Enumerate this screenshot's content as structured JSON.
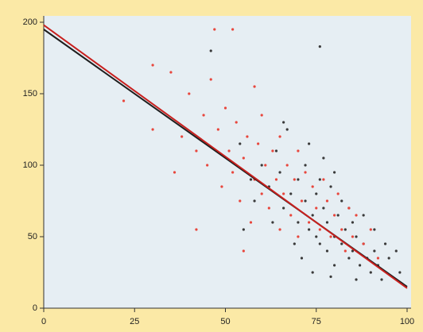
{
  "chart_data": {
    "type": "scatter",
    "xlim": [
      0,
      100
    ],
    "ylim": [
      0,
      200
    ],
    "xticks": [
      0,
      25,
      50,
      75,
      100
    ],
    "yticks": [
      0,
      50,
      100,
      150,
      200
    ],
    "series": [
      {
        "color": "#3a3a3a",
        "x": [
          60,
          62,
          65,
          66,
          68,
          70,
          70,
          72,
          73,
          74,
          75,
          75,
          76,
          77,
          78,
          78,
          79,
          80,
          80,
          81,
          82,
          83,
          84,
          85,
          85,
          86,
          87,
          88,
          89,
          90,
          91,
          92,
          93,
          95,
          97,
          98,
          64,
          67,
          72,
          76,
          58,
          63,
          69,
          71,
          74,
          79,
          82,
          84,
          88,
          91,
          54,
          57,
          46,
          55,
          86,
          66,
          73,
          77,
          80,
          94,
          76
        ],
        "values": [
          100,
          85,
          95,
          70,
          80,
          60,
          90,
          75,
          55,
          65,
          50,
          80,
          45,
          70,
          40,
          60,
          85,
          50,
          30,
          65,
          45,
          55,
          35,
          60,
          40,
          50,
          30,
          45,
          35,
          25,
          40,
          30,
          20,
          35,
          40,
          25,
          110,
          125,
          100,
          90,
          75,
          60,
          45,
          35,
          25,
          22,
          75,
          70,
          65,
          55,
          115,
          90,
          180,
          55,
          20,
          130,
          115,
          105,
          95,
          45,
          183
        ]
      },
      {
        "color": "#e8463c",
        "x": [
          22,
          30,
          36,
          38,
          40,
          42,
          44,
          45,
          46,
          48,
          49,
          50,
          51,
          52,
          53,
          54,
          55,
          56,
          57,
          58,
          59,
          60,
          60,
          61,
          62,
          63,
          64,
          65,
          65,
          66,
          67,
          68,
          69,
          70,
          70,
          71,
          72,
          73,
          74,
          75,
          76,
          77,
          78,
          79,
          80,
          81,
          82,
          83,
          84,
          85,
          86,
          88,
          90,
          92,
          52,
          47,
          30,
          35,
          42,
          58,
          55
        ],
        "values": [
          145,
          125,
          95,
          120,
          150,
          110,
          135,
          100,
          160,
          125,
          85,
          140,
          110,
          95,
          130,
          75,
          105,
          120,
          60,
          90,
          115,
          80,
          135,
          100,
          70,
          110,
          90,
          55,
          120,
          80,
          100,
          65,
          90,
          110,
          50,
          75,
          95,
          60,
          85,
          70,
          55,
          90,
          75,
          50,
          65,
          80,
          55,
          40,
          70,
          50,
          65,
          45,
          55,
          35,
          195,
          195,
          170,
          165,
          55,
          155,
          40
        ]
      }
    ],
    "lines": [
      {
        "color": "#1e1e1e",
        "x": [
          0,
          100
        ],
        "values": [
          195,
          15
        ]
      },
      {
        "color": "#c8201e",
        "x": [
          0,
          100
        ],
        "values": [
          198,
          14
        ]
      }
    ]
  }
}
